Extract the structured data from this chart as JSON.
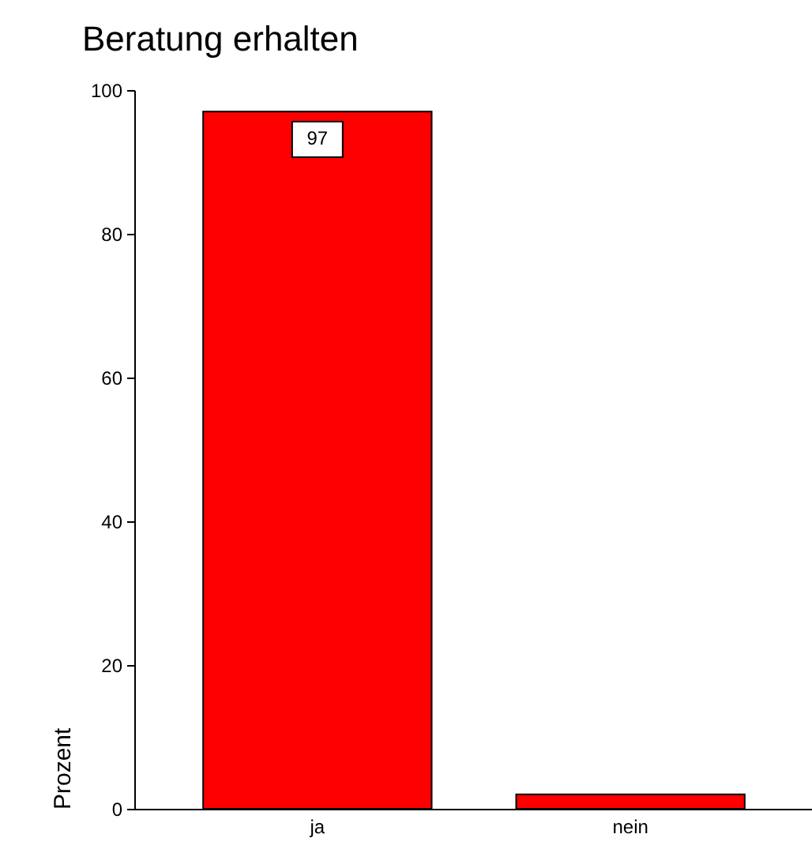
{
  "chart_data": {
    "type": "bar",
    "title": "Beratung erhalten",
    "ylabel": "Prozent",
    "categories": [
      "ja",
      "nein"
    ],
    "values": [
      97,
      2
    ],
    "color": "#ff0000",
    "value_labels": [
      "97",
      null
    ],
    "ylim": [
      0,
      100
    ],
    "yticks": [
      0,
      20,
      40,
      60,
      80,
      100
    ],
    "grid": false
  }
}
